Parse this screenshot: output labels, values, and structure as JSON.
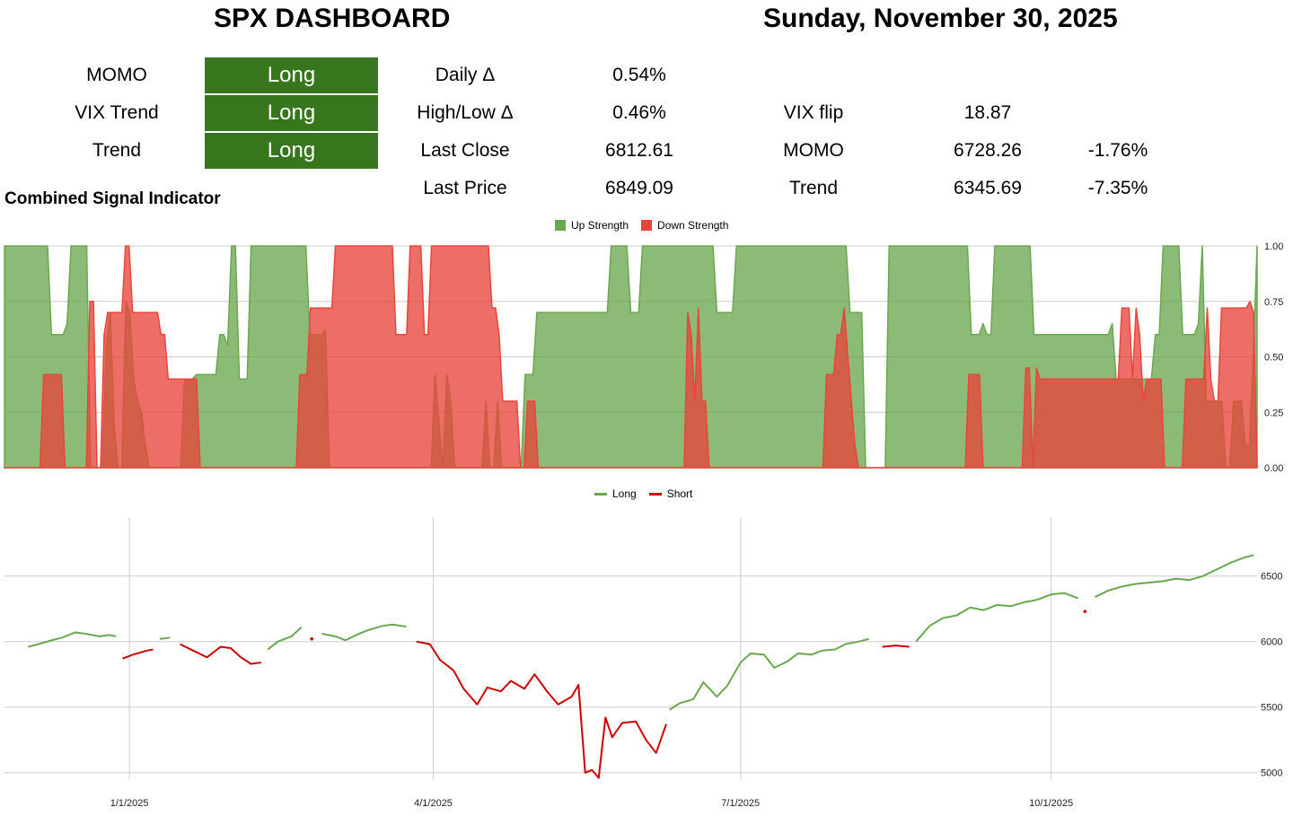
{
  "header": {
    "title": "SPX DASHBOARD",
    "date": "Sunday, November 30, 2025"
  },
  "signals": [
    {
      "label": "MOMO",
      "value": "Long"
    },
    {
      "label": "VIX Trend",
      "value": "Long"
    },
    {
      "label": "Trend",
      "value": "Long"
    }
  ],
  "stats": [
    {
      "label": "Daily Δ",
      "value": "0.54%"
    },
    {
      "label": "High/Low Δ",
      "value": "0.46%"
    },
    {
      "label": "Last Close",
      "value": "6812.61"
    },
    {
      "label": "Last Price",
      "value": "6849.09"
    }
  ],
  "levels": [
    {
      "label": "VIX flip",
      "value": "18.87",
      "pct": ""
    },
    {
      "label": "MOMO",
      "value": "6728.26",
      "pct": "-1.76%"
    },
    {
      "label": "Trend",
      "value": "6345.69",
      "pct": "-7.35%"
    }
  ],
  "colors": {
    "signal_bg": "#38761d",
    "up": "#6aa84f",
    "down": "#e8453c",
    "long": "#6aa84f",
    "short": "#cc0000"
  },
  "chart_data": [
    {
      "type": "area",
      "title": "Combined Signal Indicator",
      "series": [
        {
          "name": "Up Strength",
          "color": "#6aa84f"
        },
        {
          "name": "Down Strength",
          "color": "#e8453c"
        }
      ],
      "y_ticks": [
        "1.00",
        "0.75",
        "0.50",
        "0.25",
        "0.00"
      ],
      "ylim": [
        0,
        1
      ],
      "legend": "top-center",
      "grid": true,
      "up_values": [
        1,
        1,
        1,
        1,
        1,
        1,
        1,
        1,
        1,
        1,
        1,
        1,
        0.6,
        0.6,
        0.6,
        0.6,
        0.65,
        1,
        1,
        1,
        1,
        1,
        0,
        0,
        0,
        0,
        0.55,
        0.7,
        0.2,
        0,
        0,
        0.75,
        0.7,
        0.4,
        0.3,
        0.25,
        0.1,
        0,
        0,
        0,
        0,
        0,
        0,
        0,
        0,
        0,
        0.4,
        0.4,
        0.4,
        0.42,
        0.42,
        0.42,
        0.42,
        0.42,
        0.42,
        0.6,
        0.6,
        0.55,
        1,
        1,
        0.4,
        0.4,
        0.4,
        1,
        1,
        1,
        1,
        1,
        1,
        1,
        1,
        1,
        1,
        1,
        1,
        1,
        1,
        1,
        0.6,
        0.6,
        0.6,
        0.6,
        0.62,
        0,
        0,
        0,
        0,
        0,
        0,
        0,
        0,
        0,
        0,
        0,
        0,
        0,
        0,
        0,
        0,
        0,
        0,
        0,
        0,
        0,
        0,
        0,
        0,
        0,
        0,
        0,
        0.42,
        0.2,
        0,
        0.42,
        0.3,
        0,
        0,
        0,
        0,
        0,
        0,
        0,
        0,
        0.3,
        0,
        0,
        0.3,
        0,
        0,
        0,
        0,
        0,
        0,
        0.42,
        0.42,
        0.42,
        0.7,
        0.7,
        0.7,
        0.7,
        0.7,
        0.7,
        0.7,
        0.7,
        0.7,
        0.7,
        0.7,
        0.7,
        0.7,
        0.7,
        0.7,
        0.7,
        0.7,
        0.7,
        0.7,
        1,
        1,
        1,
        1,
        1,
        0.7,
        0.7,
        0.7,
        1,
        1,
        1,
        1,
        1,
        1,
        1,
        1,
        1,
        1,
        1,
        1,
        1,
        1,
        1,
        1,
        1,
        1,
        1,
        0.7,
        0.7,
        0.7,
        0.7,
        0.7,
        1,
        1,
        1,
        1,
        1,
        1,
        1,
        1,
        1,
        1,
        1,
        1,
        1,
        1,
        1,
        1,
        1,
        1,
        1,
        1,
        1,
        1,
        1,
        1,
        1,
        1,
        1,
        1,
        1,
        0.7,
        0.7,
        0.7,
        0.7,
        0,
        0,
        0,
        0,
        0,
        0,
        1,
        1,
        1,
        1,
        1,
        1,
        1,
        1,
        1,
        1,
        1,
        1,
        1,
        1,
        1,
        1,
        1,
        1,
        1,
        1,
        1,
        0.6,
        0.6,
        0.6,
        0.65,
        0.6,
        0.6,
        1,
        1,
        1,
        1,
        1,
        1,
        1,
        1,
        1,
        1,
        0.6,
        0.6,
        0.6,
        0.6,
        0.6,
        0.6,
        0.6,
        0.6,
        0.6,
        0.6,
        0.6,
        0.6,
        0.6,
        0.6,
        0.6,
        0.6,
        0.6,
        0.6,
        0.6,
        0.6,
        0.65,
        0.4,
        0.4,
        0.4,
        0.4,
        0.4,
        0.4,
        0.4,
        0.4,
        0.4,
        0.4,
        0.6,
        0.6,
        1,
        1,
        1,
        1,
        1,
        0.6,
        0.6,
        0.6,
        0.6,
        0.65,
        1,
        0.3,
        0.3,
        0.3,
        0.3,
        0.3,
        0,
        0,
        0.3,
        0.3,
        0.3,
        0.1,
        0.1,
        0.5,
        1
      ],
      "down_values": [
        0,
        0,
        0,
        0,
        0,
        0,
        0,
        0,
        0,
        0,
        0,
        0.42,
        0.42,
        0.42,
        0.42,
        0.42,
        0.42,
        0,
        0,
        0,
        0,
        0,
        0,
        0,
        0.75,
        0.75,
        0,
        0,
        0.6,
        0.7,
        0.7,
        0.7,
        0.7,
        0.7,
        1,
        1,
        0.7,
        0.7,
        0.7,
        0.7,
        0.7,
        0.7,
        0.7,
        0.7,
        0.6,
        0.6,
        0.4,
        0.4,
        0.4,
        0.4,
        0.4,
        0.4,
        0.4,
        0.4,
        0.4,
        0,
        0,
        0,
        0,
        0,
        0,
        0,
        0,
        0,
        0,
        0,
        0,
        0,
        0,
        0,
        0,
        0,
        0,
        0,
        0,
        0,
        0,
        0,
        0,
        0,
        0,
        0,
        0,
        0.42,
        0.42,
        0.42,
        0.72,
        0.72,
        0.72,
        0.72,
        0.72,
        0.72,
        0.72,
        1,
        1,
        1,
        1,
        1,
        1,
        1,
        1,
        1,
        1,
        1,
        1,
        1,
        1,
        1,
        1,
        1,
        0.6,
        0.6,
        0.6,
        0.6,
        1,
        1,
        1,
        1,
        0.6,
        0.6,
        1,
        1,
        1,
        1,
        1,
        1,
        1,
        1,
        1,
        1,
        1,
        1,
        1,
        1,
        1,
        1,
        1,
        0.72,
        0.72,
        0.6,
        0.3,
        0.3,
        0.3,
        0.3,
        0.3,
        0,
        0,
        0.3,
        0.3,
        0.3,
        0,
        0,
        0,
        0,
        0,
        0,
        0,
        0,
        0,
        0,
        0,
        0,
        0,
        0,
        0,
        0,
        0,
        0,
        0,
        0,
        0,
        0,
        0,
        0,
        0,
        0,
        0,
        0,
        0,
        0,
        0,
        0,
        0,
        0,
        0,
        0,
        0,
        0,
        0,
        0,
        0,
        0,
        0.7,
        0.6,
        0.3,
        0.72,
        0.3,
        0.3,
        0,
        0,
        0,
        0,
        0,
        0,
        0,
        0,
        0,
        0,
        0,
        0,
        0,
        0,
        0,
        0,
        0,
        0,
        0,
        0,
        0,
        0,
        0,
        0,
        0,
        0,
        0,
        0,
        0,
        0,
        0,
        0,
        0,
        0.42,
        0.42,
        0.42,
        0.6,
        0.6,
        0.72,
        0.5,
        0.3,
        0.1,
        0,
        0,
        0,
        0,
        0,
        0,
        0,
        0,
        0,
        0,
        0,
        0,
        0,
        0,
        0,
        0,
        0,
        0,
        0,
        0,
        0,
        0,
        0,
        0,
        0,
        0,
        0,
        0,
        0,
        0,
        0,
        0.42,
        0.42,
        0.42,
        0.42,
        0,
        0,
        0,
        0,
        0,
        0,
        0,
        0,
        0,
        0,
        0,
        0,
        0.45,
        0.45,
        0,
        0.45,
        0.4,
        0.4,
        0.4,
        0.4,
        0.4,
        0.4,
        0.4,
        0.4,
        0.4,
        0.4,
        0.4,
        0.4,
        0.4,
        0.4,
        0.4,
        0.4,
        0.4,
        0.4,
        0.4,
        0.4,
        0.4,
        0.4,
        0.4,
        0.72,
        0.72,
        0.72,
        0.4,
        0.72,
        0.6,
        0.3,
        0.4,
        0.4,
        0.4,
        0.4,
        0.4,
        0,
        0,
        0,
        0,
        0,
        0,
        0.4,
        0.4,
        0.4,
        0.4,
        0.4,
        0.4,
        0.72,
        0.4,
        0.3,
        0.3,
        0.72,
        0.72,
        0.72,
        0.72,
        0.72,
        0.72,
        0.72,
        0.72,
        0.75,
        0.7,
        0
      ]
    },
    {
      "type": "line",
      "title": "",
      "series": [
        {
          "name": "Long",
          "color": "#6aa84f"
        },
        {
          "name": "Short",
          "color": "#cc0000"
        }
      ],
      "x_ticks": [
        "1/1/2025",
        "4/1/2025",
        "7/1/2025",
        "10/1/2025"
      ],
      "y_ticks": [
        "6500",
        "6000",
        "5500",
        "5000"
      ],
      "ylim": [
        4950,
        6950
      ],
      "legend": "top-center",
      "grid": true,
      "points": [
        [
          "2024-12-02",
          5960,
          "L"
        ],
        [
          "2024-12-05",
          5980,
          "L"
        ],
        [
          "2024-12-09",
          6010,
          "L"
        ],
        [
          "2024-12-12",
          6030,
          "L"
        ],
        [
          "2024-12-16",
          6070,
          "L"
        ],
        [
          "2024-12-19",
          6060,
          "L"
        ],
        [
          "2024-12-23",
          6040,
          "L"
        ],
        [
          "2024-12-26",
          6050,
          "L"
        ],
        [
          "2024-12-28",
          6040,
          "L"
        ],
        [
          "2024-12-30",
          5870,
          "S"
        ],
        [
          "2025-01-02",
          5900,
          "S"
        ],
        [
          "2025-01-06",
          5930,
          "S"
        ],
        [
          "2025-01-08",
          5940,
          "S"
        ],
        [
          "2025-01-10",
          6020,
          "L"
        ],
        [
          "2025-01-13",
          6030,
          "L"
        ],
        [
          "2025-01-16",
          5980,
          "S"
        ],
        [
          "2025-01-20",
          5930,
          "S"
        ],
        [
          "2025-01-24",
          5880,
          "S"
        ],
        [
          "2025-01-28",
          5960,
          "S"
        ],
        [
          "2025-01-31",
          5950,
          "S"
        ],
        [
          "2025-02-03",
          5880,
          "S"
        ],
        [
          "2025-02-06",
          5830,
          "S"
        ],
        [
          "2025-02-09",
          5840,
          "S"
        ],
        [
          "2025-02-11",
          5940,
          "L"
        ],
        [
          "2025-02-14",
          6000,
          "L"
        ],
        [
          "2025-02-18",
          6040,
          "L"
        ],
        [
          "2025-02-21",
          6110,
          "L"
        ],
        [
          "2025-02-24",
          6020,
          "S"
        ],
        [
          "2025-02-27",
          6060,
          "L"
        ],
        [
          "2025-03-03",
          6040,
          "L"
        ],
        [
          "2025-03-06",
          6010,
          "L"
        ],
        [
          "2025-03-10",
          6060,
          "L"
        ],
        [
          "2025-03-13",
          6090,
          "L"
        ],
        [
          "2025-03-17",
          6120,
          "L"
        ],
        [
          "2025-03-20",
          6130,
          "L"
        ],
        [
          "2025-03-24",
          6114,
          "L"
        ],
        [
          "2025-03-27",
          6000,
          "S"
        ],
        [
          "2025-03-31",
          5980,
          "S"
        ],
        [
          "2025-04-03",
          5860,
          "S"
        ],
        [
          "2025-04-07",
          5780,
          "S"
        ],
        [
          "2025-04-10",
          5640,
          "S"
        ],
        [
          "2025-04-14",
          5520,
          "S"
        ],
        [
          "2025-04-17",
          5650,
          "S"
        ],
        [
          "2025-04-21",
          5620,
          "S"
        ],
        [
          "2025-04-24",
          5700,
          "S"
        ],
        [
          "2025-04-28",
          5640,
          "S"
        ],
        [
          "2025-05-01",
          5750,
          "S"
        ],
        [
          "2025-05-05",
          5610,
          "S"
        ],
        [
          "2025-05-08",
          5520,
          "S"
        ],
        [
          "2025-05-12",
          5580,
          "S"
        ],
        [
          "2025-05-14",
          5670,
          "S"
        ],
        [
          "2025-05-16",
          5000,
          "S"
        ],
        [
          "2025-05-18",
          5020,
          "S"
        ],
        [
          "2025-05-20",
          4960,
          "S"
        ],
        [
          "2025-05-22",
          5420,
          "S"
        ],
        [
          "2025-05-24",
          5270,
          "S"
        ],
        [
          "2025-05-27",
          5380,
          "S"
        ],
        [
          "2025-05-31",
          5390,
          "S"
        ],
        [
          "2025-06-03",
          5250,
          "S"
        ],
        [
          "2025-06-06",
          5150,
          "S"
        ],
        [
          "2025-06-09",
          5370,
          "S"
        ],
        [
          "2025-06-10",
          5480,
          "L"
        ],
        [
          "2025-06-13",
          5530,
          "L"
        ],
        [
          "2025-06-17",
          5560,
          "L"
        ],
        [
          "2025-06-20",
          5690,
          "L"
        ],
        [
          "2025-06-24",
          5580,
          "L"
        ],
        [
          "2025-06-27",
          5660,
          "L"
        ],
        [
          "2025-07-01",
          5840,
          "L"
        ],
        [
          "2025-07-04",
          5910,
          "L"
        ],
        [
          "2025-07-08",
          5900,
          "L"
        ],
        [
          "2025-07-11",
          5800,
          "L"
        ],
        [
          "2025-07-15",
          5850,
          "L"
        ],
        [
          "2025-07-18",
          5910,
          "L"
        ],
        [
          "2025-07-22",
          5900,
          "L"
        ],
        [
          "2025-07-25",
          5930,
          "L"
        ],
        [
          "2025-07-29",
          5940,
          "L"
        ],
        [
          "2025-08-01",
          5980,
          "L"
        ],
        [
          "2025-08-05",
          6000,
          "L"
        ],
        [
          "2025-08-08",
          6020,
          "L"
        ],
        [
          "2025-08-12",
          5960,
          "S"
        ],
        [
          "2025-08-16",
          5970,
          "S"
        ],
        [
          "2025-08-20",
          5960,
          "S"
        ],
        [
          "2025-08-22",
          6000,
          "L"
        ],
        [
          "2025-08-26",
          6120,
          "L"
        ],
        [
          "2025-08-30",
          6180,
          "L"
        ],
        [
          "2025-09-03",
          6200,
          "L"
        ],
        [
          "2025-09-07",
          6260,
          "L"
        ],
        [
          "2025-09-11",
          6240,
          "L"
        ],
        [
          "2025-09-15",
          6280,
          "L"
        ],
        [
          "2025-09-19",
          6270,
          "L"
        ],
        [
          "2025-09-23",
          6300,
          "L"
        ],
        [
          "2025-09-27",
          6320,
          "L"
        ],
        [
          "2025-10-01",
          6360,
          "L"
        ],
        [
          "2025-10-05",
          6370,
          "L"
        ],
        [
          "2025-10-09",
          6330,
          "L"
        ],
        [
          "2025-10-11",
          6230,
          "S"
        ],
        [
          "2025-10-14",
          6340,
          "L"
        ],
        [
          "2025-10-18",
          6390,
          "L"
        ],
        [
          "2025-10-22",
          6420,
          "L"
        ],
        [
          "2025-10-26",
          6440,
          "L"
        ],
        [
          "2025-10-30",
          6450,
          "L"
        ],
        [
          "2025-11-03",
          6460,
          "L"
        ],
        [
          "2025-11-07",
          6480,
          "L"
        ],
        [
          "2025-11-11",
          6470,
          "L"
        ],
        [
          "2025-11-15",
          6500,
          "L"
        ],
        [
          "2025-11-19",
          6550,
          "L"
        ],
        [
          "2025-11-23",
          6600,
          "L"
        ],
        [
          "2025-11-27",
          6640,
          "L"
        ],
        [
          "2025-11-30",
          6660,
          "L"
        ]
      ]
    }
  ]
}
